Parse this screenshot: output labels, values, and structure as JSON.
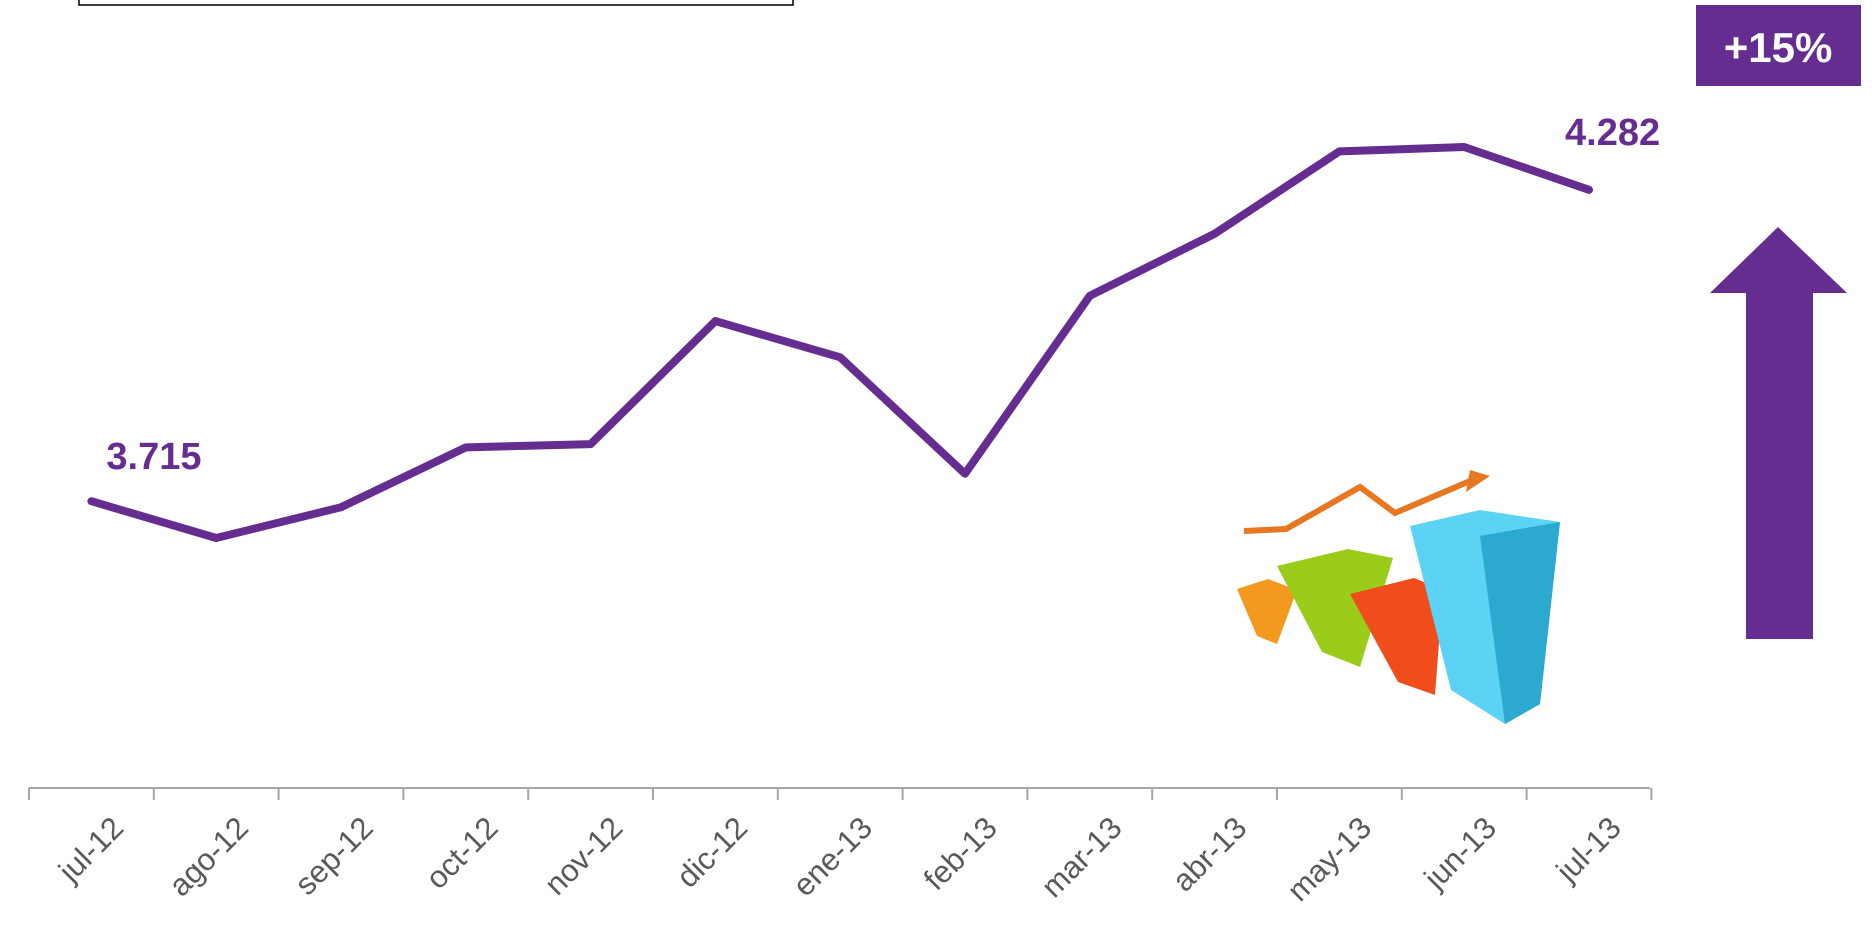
{
  "chart_data": {
    "type": "line",
    "categories": [
      "jul-12",
      "ago-12",
      "sep-12",
      "oct-12",
      "nov-12",
      "dic-12",
      "ene-13",
      "feb-13",
      "mar-13",
      "abr-13",
      "may-13",
      "jun-13",
      "jul-13"
    ],
    "values": [
      3715,
      3648,
      3704,
      3813,
      3819,
      4043,
      3977,
      3765,
      4089,
      4202,
      4352,
      4360,
      4282
    ],
    "value_labels": [
      "3.715",
      null,
      null,
      null,
      null,
      null,
      null,
      null,
      null,
      null,
      null,
      null,
      "4.282"
    ],
    "color": "#662d91",
    "annotation": "+15%",
    "grid": false
  }
}
